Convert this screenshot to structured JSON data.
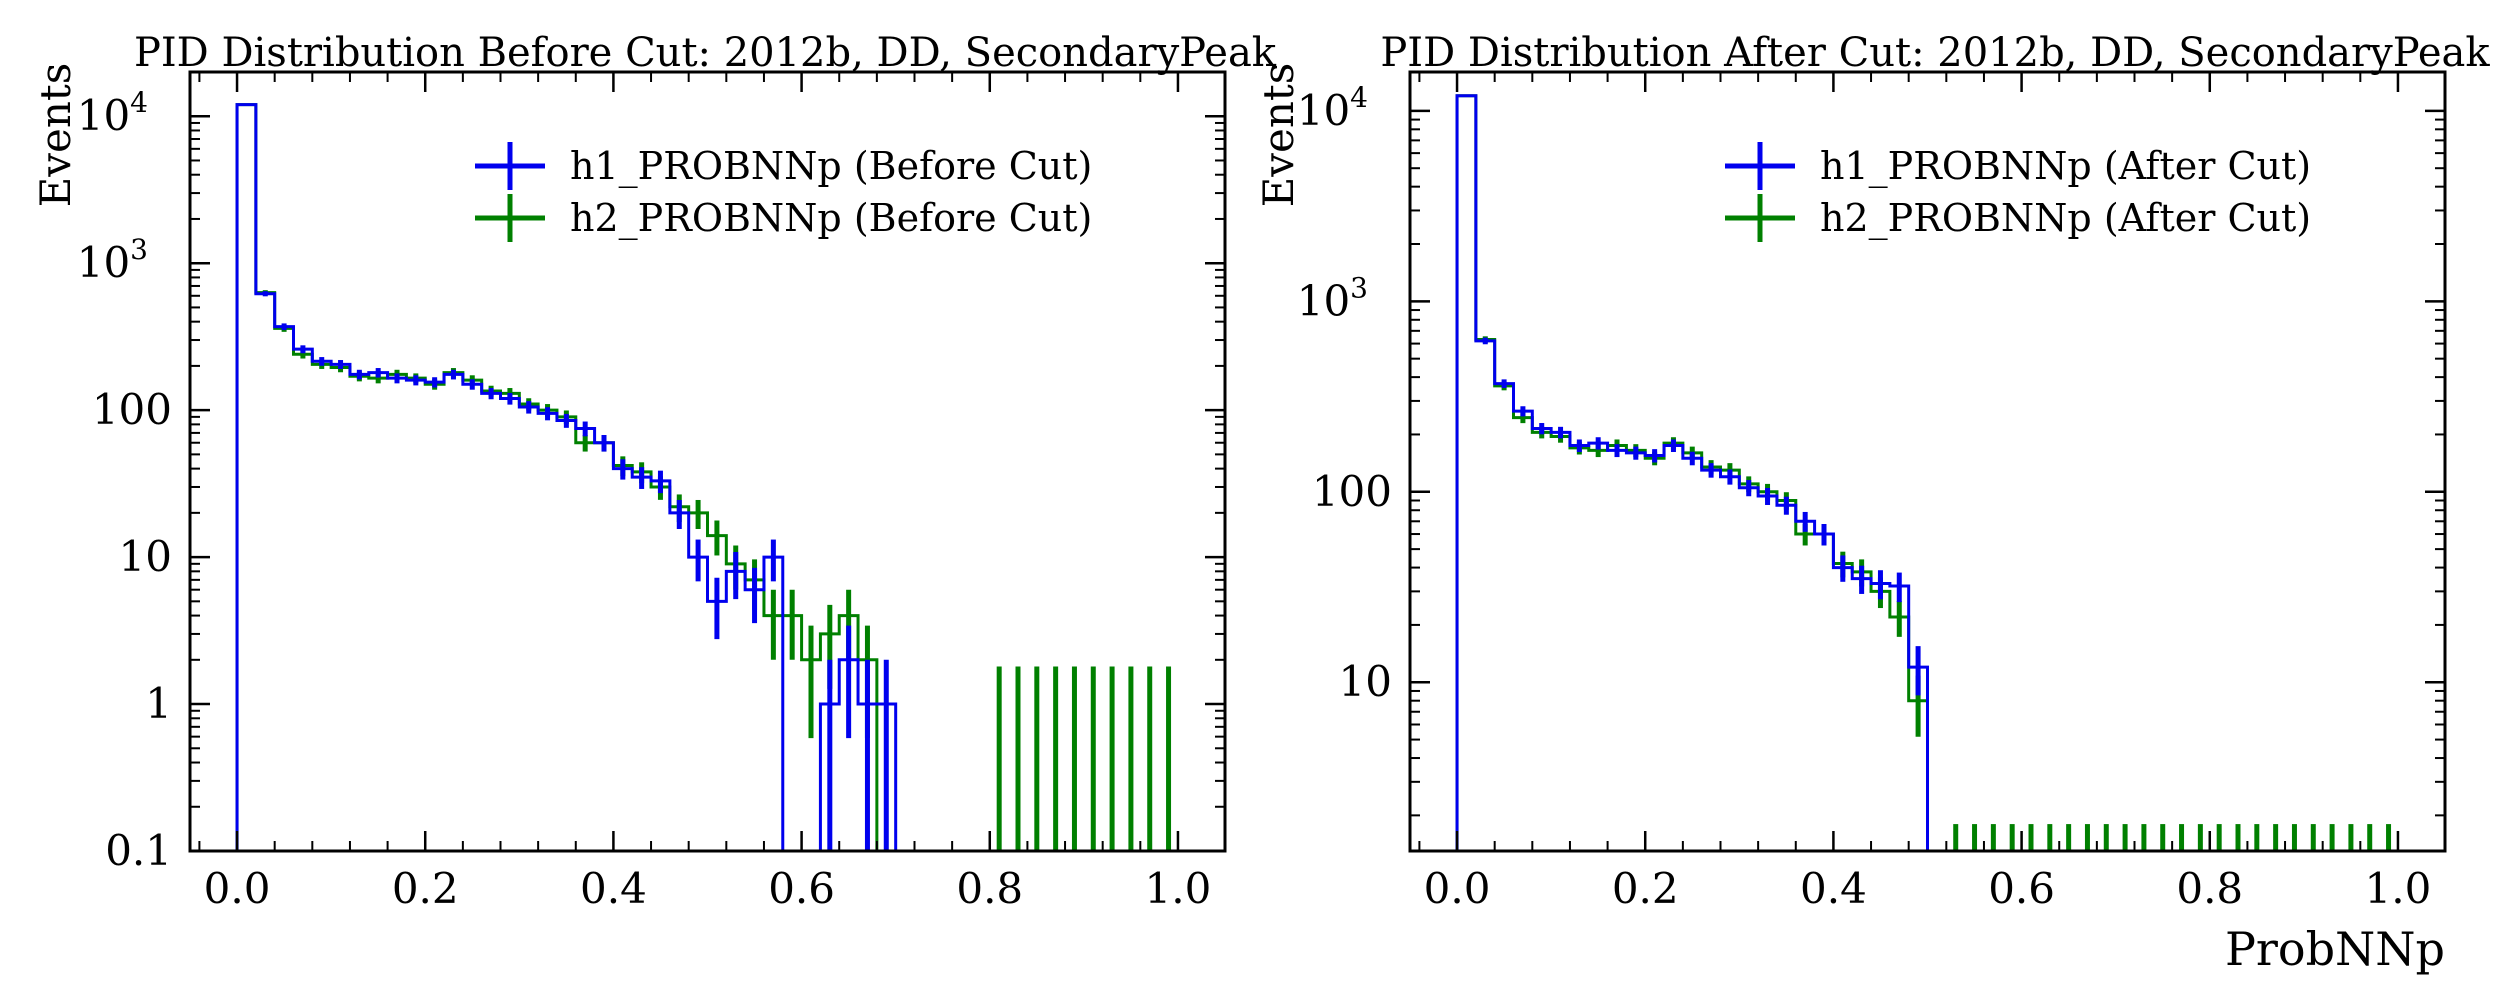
{
  "chart_data": [
    {
      "type": "histogram",
      "title": "PID Distribution Before Cut: 2012b, DD, SecondaryPeak",
      "xlabel": "",
      "ylabel": "Events",
      "xlim": [
        -0.05,
        1.05
      ],
      "ylim": [
        0.1,
        20000
      ],
      "yscale": "log",
      "x_ticks": [
        {
          "v": 0.0,
          "t": "0.0"
        },
        {
          "v": 0.2,
          "t": "0.2"
        },
        {
          "v": 0.4,
          "t": "0.4"
        },
        {
          "v": 0.6,
          "t": "0.6"
        },
        {
          "v": 0.8,
          "t": "0.8"
        },
        {
          "v": 1.0,
          "t": "1.0"
        }
      ],
      "y_ticks": [
        {
          "v": 10000,
          "base": "10",
          "exp": "4"
        },
        {
          "v": 1000,
          "base": "10",
          "exp": "3"
        },
        {
          "v": 100,
          "base": "100",
          "exp": ""
        },
        {
          "v": 10,
          "base": "10",
          "exp": ""
        },
        {
          "v": 1,
          "base": "1",
          "exp": ""
        },
        {
          "v": 0.1,
          "base": "0.1",
          "exp": ""
        }
      ],
      "legend_position": "top-right",
      "bin_edges_from": 0.0,
      "bin_width": 0.02,
      "series": [
        {
          "name": "h1_PROBNNp (Before Cut)",
          "color": "#0000ee",
          "values": [
            12000,
            620,
            370,
            260,
            215,
            205,
            175,
            180,
            165,
            160,
            155,
            175,
            150,
            130,
            120,
            105,
            95,
            85,
            75,
            60,
            40,
            35,
            33,
            20,
            10,
            5,
            8,
            6,
            10,
            0,
            0,
            1,
            2,
            1,
            1,
            0,
            0,
            0,
            0,
            0,
            0,
            0,
            0,
            0,
            0,
            0,
            0,
            0,
            0,
            0
          ]
        },
        {
          "name": "h2_PROBNNp (Before Cut)",
          "color": "#008000",
          "values": [
            12000,
            630,
            360,
            240,
            205,
            195,
            170,
            165,
            175,
            165,
            150,
            180,
            160,
            135,
            130,
            110,
            100,
            90,
            60,
            60,
            42,
            38,
            30,
            22,
            20,
            14,
            9,
            7,
            4,
            4,
            2,
            3,
            4,
            2,
            0,
            0,
            0,
            0,
            0,
            0,
            0,
            0,
            0,
            0,
            0,
            0,
            0,
            0,
            0,
            0
          ]
        }
      ]
    },
    {
      "type": "histogram",
      "title": "PID Distribution After Cut: 2012b, DD, SecondaryPeak",
      "xlabel": "ProbNNp",
      "ylabel": "Events",
      "xlim": [
        -0.05,
        1.05
      ],
      "ylim": [
        1.3,
        16000
      ],
      "yscale": "log",
      "x_ticks": [
        {
          "v": 0.0,
          "t": "0.0"
        },
        {
          "v": 0.2,
          "t": "0.2"
        },
        {
          "v": 0.4,
          "t": "0.4"
        },
        {
          "v": 0.6,
          "t": "0.6"
        },
        {
          "v": 0.8,
          "t": "0.8"
        },
        {
          "v": 1.0,
          "t": "1.0"
        }
      ],
      "y_ticks": [
        {
          "v": 10000,
          "base": "10",
          "exp": "4"
        },
        {
          "v": 1000,
          "base": "10",
          "exp": "3"
        },
        {
          "v": 100,
          "base": "100",
          "exp": ""
        },
        {
          "v": 10,
          "base": "10",
          "exp": ""
        }
      ],
      "legend_position": "top-right",
      "bin_edges_from": 0.0,
      "bin_width": 0.02,
      "series": [
        {
          "name": "h1_PROBNNp (After Cut)",
          "color": "#0000ee",
          "values": [
            12000,
            620,
            370,
            265,
            215,
            205,
            175,
            180,
            165,
            160,
            155,
            175,
            150,
            130,
            120,
            105,
            95,
            85,
            70,
            60,
            40,
            35,
            33,
            32,
            12,
            0,
            0,
            0,
            0,
            0,
            0,
            0,
            0,
            0,
            0,
            0,
            0,
            0,
            0,
            0,
            0,
            0,
            0,
            0,
            0,
            0,
            0,
            0,
            0,
            0
          ]
        },
        {
          "name": "h2_PROBNNp (After Cut)",
          "color": "#008000",
          "values": [
            12000,
            630,
            360,
            245,
            205,
            195,
            170,
            165,
            175,
            165,
            150,
            180,
            160,
            135,
            130,
            110,
            100,
            90,
            60,
            60,
            42,
            38,
            30,
            22,
            8,
            0,
            0,
            0,
            0,
            0,
            0,
            0,
            0,
            0,
            0,
            0,
            0,
            0,
            0,
            0,
            0,
            0,
            0,
            0,
            0,
            0,
            0,
            0,
            0,
            0
          ]
        }
      ]
    }
  ]
}
